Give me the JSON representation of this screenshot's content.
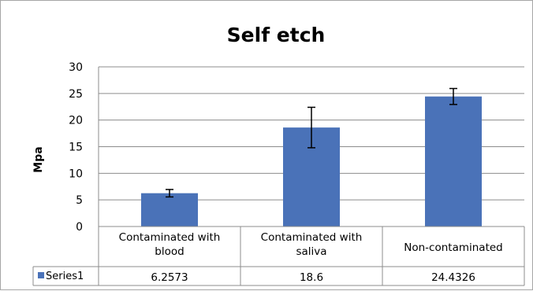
{
  "chart_data": {
    "type": "bar",
    "title": "Self etch",
    "xlabel": "",
    "ylabel": "Mpa",
    "ylim": [
      0,
      30
    ],
    "yticks": [
      0,
      5,
      10,
      15,
      20,
      25,
      30
    ],
    "grid": true,
    "legend": "data-table",
    "categories": [
      [
        "Contaminated with",
        "blood"
      ],
      [
        "Contaminated with",
        "saliva"
      ],
      [
        "Non-contaminated"
      ]
    ],
    "series": [
      {
        "name": "Series1",
        "color": "#4a72b8",
        "values": [
          6.2573,
          18.6,
          24.4326
        ],
        "value_labels": [
          "6.2573",
          "18.6",
          "24.4326"
        ],
        "error": [
          0.7,
          3.8,
          1.5
        ]
      }
    ]
  }
}
